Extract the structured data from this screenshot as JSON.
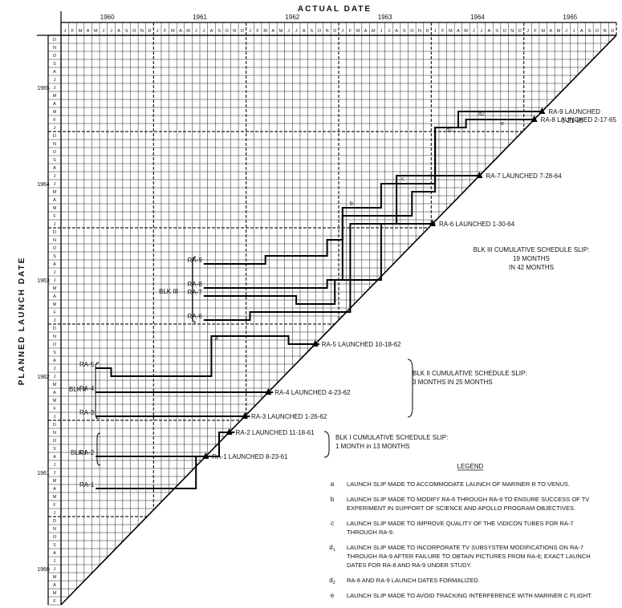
{
  "chart_data": {
    "type": "line",
    "title": "",
    "xlabel": "ACTUAL DATE",
    "ylabel": "PLANNED LAUNCH DATE",
    "years": [
      "1960",
      "1961",
      "1962",
      "1963",
      "1964",
      "1965"
    ],
    "month_letters": [
      "J",
      "F",
      "M",
      "A",
      "M",
      "J",
      "J",
      "A",
      "S",
      "O",
      "N",
      "D"
    ],
    "x_range": [
      "1960-01",
      "1965-12"
    ],
    "y_range": [
      "1960-02",
      "1965-12"
    ],
    "grid": true,
    "series": [
      {
        "name": "RA-1",
        "points": [
          [
            "1960-05",
            "1961-04"
          ],
          [
            "1961-06",
            "1961-04"
          ],
          [
            "1961-06",
            "1961-08"
          ],
          [
            "1961-08",
            "1961-08"
          ]
        ]
      },
      {
        "name": "RA-2",
        "points": [
          [
            "1960-05",
            "1961-08"
          ],
          [
            "1961-09",
            "1961-08"
          ],
          [
            "1961-09",
            "1961-11"
          ],
          [
            "1961-11",
            "1961-11"
          ]
        ]
      },
      {
        "name": "RA-3",
        "points": [
          [
            "1960-05",
            "1962-01"
          ],
          [
            "1962-01",
            "1962-01"
          ]
        ]
      },
      {
        "name": "RA-4",
        "points": [
          [
            "1960-05",
            "1962-04"
          ],
          [
            "1962-04",
            "1962-04"
          ]
        ]
      },
      {
        "name": "RA-5",
        "points": [
          [
            "1960-05",
            "1962-07"
          ],
          [
            "1960-07",
            "1962-07"
          ],
          [
            "1960-07",
            "1962-06"
          ],
          [
            "1961-08",
            "1962-06"
          ],
          [
            "1961-08",
            "1962-11"
          ],
          [
            "1962-06",
            "1962-11"
          ],
          [
            "1962-06",
            "1962-10"
          ],
          [
            "1962-10",
            "1962-10"
          ]
        ]
      },
      {
        "name": "RA-6",
        "points": [
          [
            "1961-07",
            "1963-01"
          ],
          [
            "1962-01",
            "1963-01"
          ],
          [
            "1962-01",
            "1963-02"
          ],
          [
            "1963-02",
            "1963-02"
          ],
          [
            "1963-02",
            "1964-01"
          ],
          [
            "1964-01",
            "1964-01"
          ]
        ]
      },
      {
        "name": "RA-7",
        "points": [
          [
            "1961-07",
            "1963-04"
          ],
          [
            "1962-07",
            "1963-04"
          ],
          [
            "1962-07",
            "1963-03"
          ],
          [
            "1962-12",
            "1963-03"
          ],
          [
            "1962-12",
            "1963-06"
          ],
          [
            "1963-06",
            "1963-06"
          ],
          [
            "1963-06",
            "1964-01"
          ],
          [
            "1963-08",
            "1964-01"
          ],
          [
            "1963-08",
            "1964-07"
          ],
          [
            "1964-07",
            "1964-07"
          ]
        ]
      },
      {
        "name": "RA-8",
        "points": [
          [
            "1961-07",
            "1963-05"
          ],
          [
            "1962-11",
            "1963-05"
          ],
          [
            "1962-11",
            "1963-06"
          ],
          [
            "1963-01",
            "1963-06"
          ],
          [
            "1963-01",
            "1964-02"
          ],
          [
            "1963-10",
            "1964-02"
          ],
          [
            "1963-10",
            "1964-05"
          ],
          [
            "1964-01",
            "1964-05"
          ],
          [
            "1964-01",
            "1965-01"
          ],
          [
            "1964-05",
            "1965-01"
          ],
          [
            "1964-05",
            "1965-02"
          ],
          [
            "1965-02",
            "1965-02"
          ]
        ]
      },
      {
        "name": "RA-9",
        "points": [
          [
            "1961-07",
            "1963-08"
          ],
          [
            "1962-03",
            "1963-08"
          ],
          [
            "1962-03",
            "1963-09"
          ],
          [
            "1962-11",
            "1963-09"
          ],
          [
            "1962-11",
            "1963-11"
          ],
          [
            "1963-01",
            "1963-11"
          ],
          [
            "1963-01",
            "1964-03"
          ],
          [
            "1963-06",
            "1964-03"
          ],
          [
            "1963-06",
            "1964-06"
          ],
          [
            "1964-01",
            "1964-06"
          ],
          [
            "1964-01",
            "1965-01"
          ],
          [
            "1964-04",
            "1965-01"
          ],
          [
            "1964-04",
            "1965-03"
          ],
          [
            "1965-03",
            "1965-03"
          ]
        ]
      }
    ],
    "launch_labels": [
      {
        "text": "RA-1 LAUNCHED 8-23-61",
        "date": "1961-08"
      },
      {
        "text": "RA-2 LAUNCHED 11-18-61",
        "date": "1961-11"
      },
      {
        "text": "RA-3 LAUNCHED 1-26-62",
        "date": "1962-01"
      },
      {
        "text": "RA-4 LAUNCHED 4-23-62",
        "date": "1962-04"
      },
      {
        "text": "RA-5 LAUNCHED 10-18-62",
        "date": "1962-10"
      },
      {
        "text": "RA-6 LAUNCHED 1-30-64",
        "date": "1964-01"
      },
      {
        "text": "RA-7 LAUNCHED 7-28-64",
        "date": "1964-07"
      },
      {
        "text": "RA-8 LAUNCHED 2-17-65",
        "date": "1965-02"
      },
      {
        "text": "RA-9 LAUNCHED",
        "text2": "3-21-65",
        "date": "1965-03"
      }
    ],
    "letter_marks": [
      "a",
      "b",
      "c",
      "d1",
      "d2",
      "e"
    ],
    "block_labels": {
      "blk1": "BLK I",
      "blk2": "BLK II",
      "blk3": "BLK III"
    },
    "summaries": {
      "blk1": [
        "BLK I CUMULATIVE SCHEDULE SLIP:",
        "1 MONTH in 13 MONTHS"
      ],
      "blk2": [
        "BLK II CUMULATIVE SCHEDULE SLIP:",
        "3 MONTHS IN 25 MONTHS"
      ],
      "blk3": [
        "BLK III CUMULATIVE SCHEDULE SLIP:",
        "19 MONTHS",
        "IN 42 MONTHS"
      ]
    },
    "legend": {
      "title": "LEGEND",
      "items": [
        {
          "key": "a",
          "lines": [
            "LAUNCH SLIP MADE TO ACCOMMODATE LAUNCH OF MARINER R TO VENUS."
          ]
        },
        {
          "key": "b",
          "lines": [
            "LAUNCH SLIP MADE TO MODIFY RA-6 THROUGH RA-9 TO ENSURE SUCCESS OF TV",
            "EXPERIMENT IN SUPPORT OF SCIENCE AND APOLLO PROGRAM OBJECTIVES."
          ]
        },
        {
          "key": "c",
          "lines": [
            "LAUNCH SLIP MADE TO IMPROVE QUALITY OF THE VIDICON TUBES FOR RA-7",
            "THROUGH RA-9."
          ]
        },
        {
          "key": "d1",
          "lines": [
            "LAUNCH SLIP MADE TO INCORPORATE TV SUBSYSTEM MODIFICATIONS ON RA-7",
            "THROUGH RA-9 AFTER FAILURE TO OBTAIN PICTURES FROM RA-6; EXACT LAUNCH",
            "DATES FOR RA-8 AND RA-9 UNDER STUDY."
          ]
        },
        {
          "key": "d2",
          "lines": [
            "RA-8 AND RA-9 LAUNCH DATES FORMALIZED."
          ]
        },
        {
          "key": "e",
          "lines": [
            "LAUNCH SLIP MADE TO AVOID TRACKING INTERFERENCE WITH MARINER C FLIGHT."
          ]
        }
      ]
    }
  }
}
